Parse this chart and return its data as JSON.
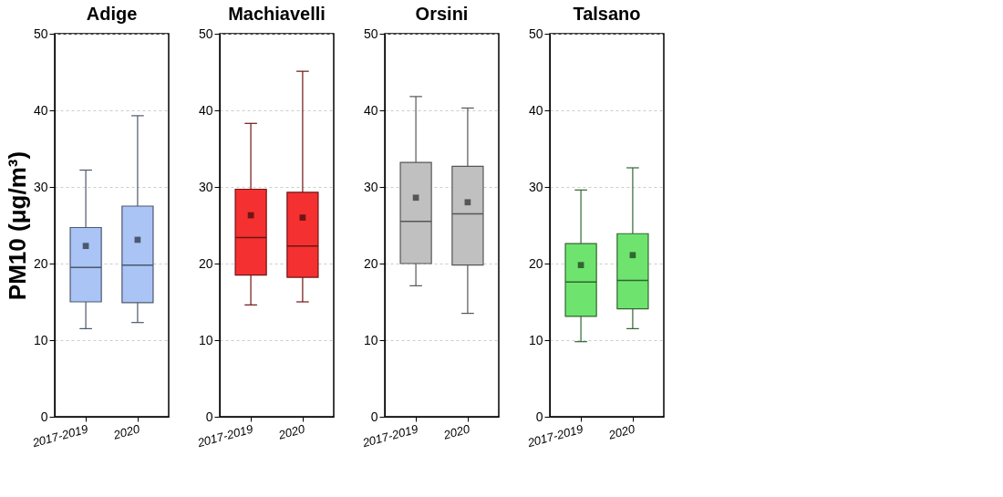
{
  "chart_data": [
    {
      "type": "box",
      "title": "Adige",
      "ylabel": "PM10 (μg/m³)",
      "categories": [
        "2017-2019",
        "2020"
      ],
      "ylim": [
        0,
        50
      ],
      "yticks": [
        0,
        10,
        20,
        30,
        40,
        50
      ],
      "grid": "y",
      "marker": "square",
      "series": [
        {
          "color": "#a9c4f5",
          "boxes": [
            {
              "low": 11.5,
              "q1": 15,
              "median": 19.5,
              "q3": 24.7,
              "high": 32.2,
              "mean": 22.3
            },
            {
              "low": 12.3,
              "q1": 14.9,
              "median": 19.8,
              "q3": 27.5,
              "high": 39.3,
              "mean": 23.1
            }
          ]
        }
      ]
    },
    {
      "type": "box",
      "title": "Machiavelli",
      "categories": [
        "2017-2019",
        "2020"
      ],
      "ylim": [
        0,
        50
      ],
      "yticks": [
        0,
        10,
        20,
        30,
        40,
        50
      ],
      "grid": "y",
      "marker": "square",
      "series": [
        {
          "color": "#f53030",
          "boxes": [
            {
              "low": 14.6,
              "q1": 18.5,
              "median": 23.4,
              "q3": 29.7,
              "high": 38.3,
              "mean": 26.3
            },
            {
              "low": 15,
              "q1": 18.2,
              "median": 22.3,
              "q3": 29.3,
              "high": 45.1,
              "mean": 26
            }
          ]
        }
      ]
    },
    {
      "type": "box",
      "title": "Orsini",
      "categories": [
        "2017-2019",
        "2020"
      ],
      "ylim": [
        0,
        50
      ],
      "yticks": [
        0,
        10,
        20,
        30,
        40,
        50
      ],
      "grid": "y",
      "marker": "square",
      "series": [
        {
          "color": "#c0c0c0",
          "boxes": [
            {
              "low": 17.1,
              "q1": 20,
              "median": 25.5,
              "q3": 33.2,
              "high": 41.8,
              "mean": 28.6
            },
            {
              "low": 13.5,
              "q1": 19.8,
              "median": 26.5,
              "q3": 32.7,
              "high": 40.3,
              "mean": 28
            }
          ]
        }
      ]
    },
    {
      "type": "box",
      "title": "Talsano",
      "categories": [
        "2017-2019",
        "2020"
      ],
      "ylim": [
        0,
        50
      ],
      "yticks": [
        0,
        10,
        20,
        30,
        40,
        50
      ],
      "grid": "y",
      "marker": "square",
      "series": [
        {
          "color": "#6ee46e",
          "boxes": [
            {
              "low": 9.8,
              "q1": 13.1,
              "median": 17.6,
              "q3": 22.6,
              "high": 29.6,
              "mean": 19.8
            },
            {
              "low": 11.5,
              "q1": 14.1,
              "median": 17.8,
              "q3": 23.9,
              "high": 32.5,
              "mean": 21.1
            }
          ]
        }
      ]
    }
  ]
}
